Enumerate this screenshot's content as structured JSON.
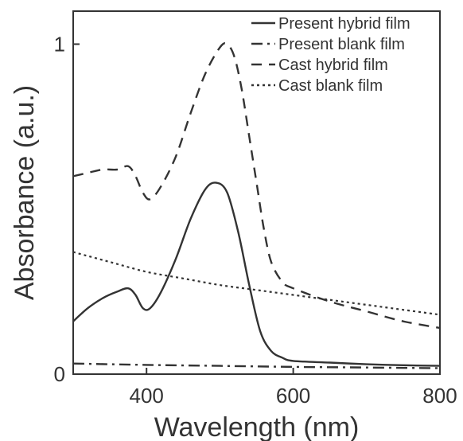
{
  "chart_data": {
    "type": "line",
    "xlabel": "Wavelength (nm)",
    "ylabel": "Absorbance (a.u.)",
    "xlim": [
      300,
      800
    ],
    "ylim": [
      0,
      1.1
    ],
    "x_ticks": [
      400,
      600,
      800
    ],
    "y_ticks": [
      0,
      1
    ],
    "x_tick_labels": [
      "400",
      "600",
      "800"
    ],
    "y_tick_labels": [
      "0",
      "1"
    ],
    "grid": false,
    "legend_position": "top-right",
    "series": [
      {
        "name": "Present hybrid film",
        "style": "solid",
        "x": [
          300,
          320,
          340,
          360,
          375,
          385,
          395,
          405,
          420,
          440,
          460,
          480,
          495,
          510,
          525,
          540,
          555,
          570,
          585,
          600,
          650,
          700,
          750,
          800
        ],
        "y": [
          0.16,
          0.2,
          0.23,
          0.25,
          0.26,
          0.24,
          0.2,
          0.2,
          0.25,
          0.35,
          0.47,
          0.56,
          0.58,
          0.55,
          0.43,
          0.27,
          0.13,
          0.07,
          0.05,
          0.04,
          0.035,
          0.03,
          0.027,
          0.025
        ]
      },
      {
        "name": "Present blank film",
        "style": "dashdot",
        "x": [
          300,
          400,
          500,
          600,
          700,
          800
        ],
        "y": [
          0.032,
          0.028,
          0.025,
          0.022,
          0.02,
          0.018
        ]
      },
      {
        "name": "Cast hybrid film",
        "style": "dashed",
        "x": [
          300,
          320,
          340,
          360,
          375,
          385,
          395,
          405,
          420,
          440,
          460,
          480,
          500,
          510,
          520,
          530,
          540,
          550,
          560,
          570,
          585,
          600,
          650,
          700,
          750,
          800
        ],
        "y": [
          0.6,
          0.61,
          0.62,
          0.62,
          0.63,
          0.6,
          0.55,
          0.53,
          0.57,
          0.66,
          0.79,
          0.91,
          0.99,
          1.0,
          0.96,
          0.86,
          0.72,
          0.58,
          0.44,
          0.34,
          0.28,
          0.26,
          0.22,
          0.19,
          0.16,
          0.14
        ]
      },
      {
        "name": "Cast blank film",
        "style": "dotted",
        "x": [
          300,
          350,
          400,
          450,
          500,
          550,
          600,
          650,
          700,
          750,
          800
        ],
        "y": [
          0.37,
          0.34,
          0.31,
          0.29,
          0.27,
          0.255,
          0.24,
          0.225,
          0.21,
          0.195,
          0.18
        ]
      }
    ]
  }
}
